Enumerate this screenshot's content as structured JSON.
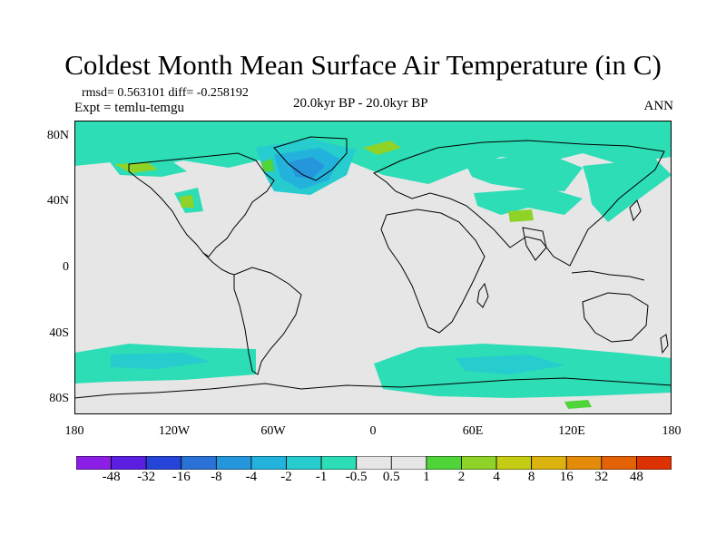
{
  "header": {
    "title": "Coldest Month Mean Surface Air Temperature (in C)",
    "stats": "rmsd= 0.563101 diff= -0.258192",
    "experiment": "Expt = temlu-temgu",
    "period": "20.0kyr BP - 20.0kyr BP",
    "season": "ANN"
  },
  "axes": {
    "lat_labels": [
      "80N",
      "40N",
      "0",
      "40S",
      "80S"
    ],
    "lon_labels": [
      "180",
      "120W",
      "60W",
      "0",
      "60E",
      "120E",
      "180"
    ]
  },
  "colorbar": {
    "labels": [
      "-48",
      "-32",
      "-16",
      "-8",
      "-4",
      "-2",
      "-1",
      "-0.5",
      "0.5",
      "1",
      "2",
      "4",
      "8",
      "16",
      "32",
      "48"
    ],
    "colors": [
      "#8c1fe6",
      "#5a1fe0",
      "#2545d8",
      "#2a72d6",
      "#2596dc",
      "#22b2dc",
      "#26ccce",
      "#2dddb6",
      "#e6e6e6",
      "#4fd43a",
      "#8fd228",
      "#c4cc14",
      "#dcb20e",
      "#e48c0a",
      "#e46206",
      "#dc3204"
    ]
  },
  "map": {
    "background_color": "#e6e6e6",
    "coast_color": "#000000",
    "lon_range": [
      -180,
      180
    ],
    "lat_range": [
      -90,
      90
    ]
  }
}
